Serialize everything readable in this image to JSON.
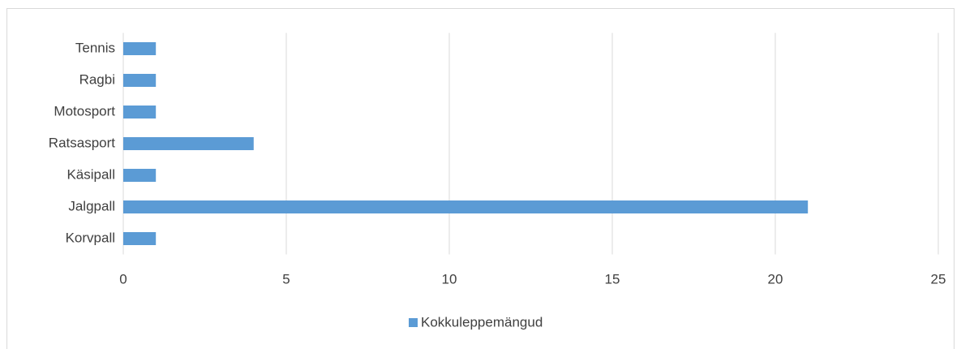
{
  "chart_data": {
    "type": "bar",
    "orientation": "horizontal",
    "categories": [
      "Korvpall",
      "Jalgpall",
      "Käsipall",
      "Ratsasport",
      "Motosport",
      "Ragbi",
      "Tennis"
    ],
    "series": [
      {
        "name": "Kokkuleppemängud",
        "color": "#5b9bd5",
        "values": [
          1,
          21,
          1,
          4,
          1,
          1,
          1
        ]
      }
    ],
    "xlim": [
      0,
      25
    ],
    "xticks": [
      0,
      5,
      10,
      15,
      20,
      25
    ],
    "grid": true,
    "legend": "bottom"
  }
}
